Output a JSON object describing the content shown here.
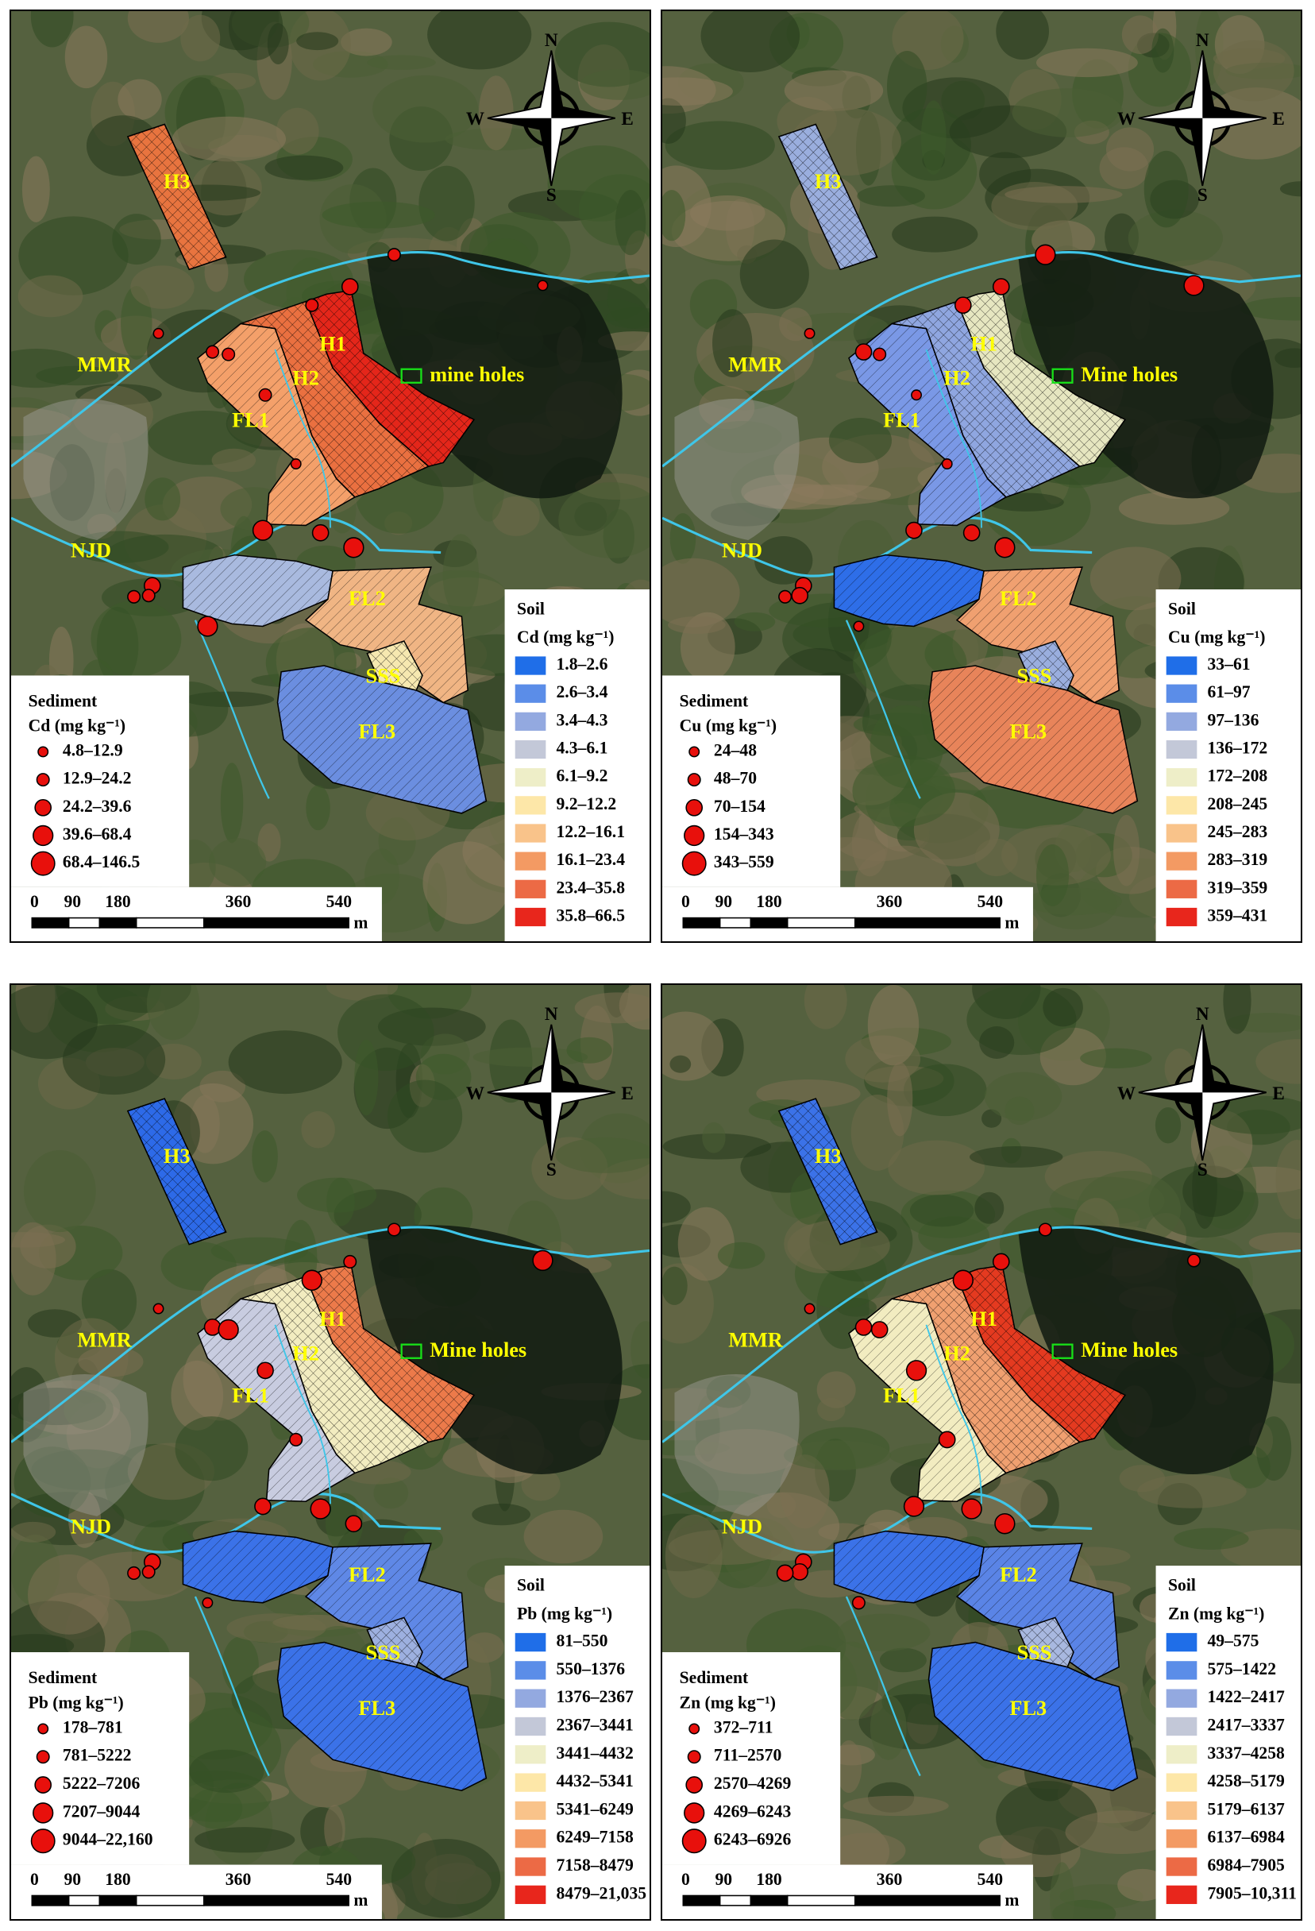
{
  "compass": {
    "n": "N",
    "s": "S",
    "w": "W",
    "e": "E"
  },
  "scale_bar": {
    "ticks": [
      "0",
      "90",
      "180",
      "360",
      "540"
    ],
    "unit": "m"
  },
  "soil_class_colors": [
    "#1f6ee8",
    "#5b8de8",
    "#93a9e0",
    "#c3c8d8",
    "#eeeec8",
    "#fde7a8",
    "#f9c38a",
    "#f39a63",
    "#ec6a45",
    "#e8261c"
  ],
  "sediment_color": "#e8100c",
  "panels": [
    {
      "soil_title": "Soil",
      "sediment_title": "Sediment",
      "unit_label": "Cd (mg kg⁻¹)",
      "soil_classes": [
        "1.8–2.6",
        "2.6–3.4",
        "3.4–4.3",
        "4.3–6.1",
        "6.1–9.2",
        "9.2–12.2",
        "12.2–16.1",
        "16.1–23.4",
        "23.4–35.8",
        "35.8–66.5"
      ],
      "sediment_classes": [
        "4.8–12.9",
        "12.9–24.2",
        "24.2–39.6",
        "39.6–68.4",
        "68.4–146.5"
      ],
      "labels": {
        "h3": "H3",
        "h1": "H1",
        "h2": "H2",
        "mmr": "MMR",
        "fl1": "FL1",
        "njd": "NJD",
        "fl2": "FL2",
        "sss": "SSS",
        "fl3": "FL3",
        "mine": "mine holes"
      }
    },
    {
      "soil_title": "Soil",
      "sediment_title": "Sediment",
      "unit_label": "Cu (mg kg⁻¹)",
      "soil_classes": [
        "33–61",
        "61–97",
        "97–136",
        "136–172",
        "172–208",
        "208–245",
        "245–283",
        "283–319",
        "319–359",
        "359–431"
      ],
      "sediment_classes": [
        "24–48",
        "48–70",
        "70–154",
        "154–343",
        "343–559"
      ],
      "labels": {
        "h3": "H3",
        "h1": "H1",
        "h2": "H2",
        "mmr": "MMR",
        "fl1": "FL1",
        "njd": "NJD",
        "fl2": "FL2",
        "sss": "SSS",
        "fl3": "FL3",
        "mine": "Mine holes"
      }
    },
    {
      "soil_title": "Soil",
      "sediment_title": "Sediment",
      "unit_label": "Pb (mg kg⁻¹)",
      "soil_classes": [
        "81–550",
        "550–1376",
        "1376–2367",
        "2367–3441",
        "3441–4432",
        "4432–5341",
        "5341–6249",
        "6249–7158",
        "7158–8479",
        "8479–21,035"
      ],
      "sediment_classes": [
        "178–781",
        "781–5222",
        "5222–7206",
        "7207–9044",
        "9044–22,160"
      ],
      "labels": {
        "h3": "H3",
        "h1": "H1",
        "h2": "H2",
        "mmr": "MMR",
        "fl1": "FL1",
        "njd": "NJD",
        "fl2": "FL2",
        "sss": "SSS",
        "fl3": "FL3",
        "mine": "Mine holes"
      }
    },
    {
      "soil_title": "Soil",
      "sediment_title": "Sediment",
      "unit_label": "Zn (mg kg⁻¹)",
      "soil_classes": [
        "49–575",
        "575–1422",
        "1422–2417",
        "2417–3337",
        "3337–4258",
        "4258–5179",
        "5179–6137",
        "6137–6984",
        "6984–7905",
        "7905–10,311"
      ],
      "sediment_classes": [
        "372–711",
        "711–2570",
        "2570–4269",
        "4269–6243",
        "6243–6926"
      ],
      "labels": {
        "h3": "H3",
        "h1": "H1",
        "h2": "H2",
        "mmr": "MMR",
        "fl1": "FL1",
        "njd": "NJD",
        "fl2": "FL2",
        "sss": "SSS",
        "fl3": "FL3",
        "mine": "Mine holes"
      }
    }
  ]
}
